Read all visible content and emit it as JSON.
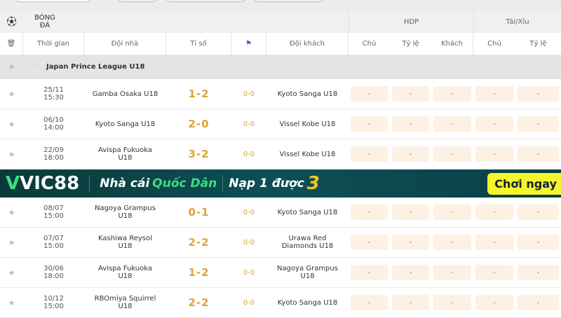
{
  "section": {
    "sport": "BÓNG ĐÁ",
    "icon": "soccer-ball-icon"
  },
  "headers": {
    "time": "Thời gian",
    "home": "Đội nhà",
    "score": "Tỉ số",
    "away": "Đội khách",
    "hdp": "HDP",
    "taixiu": "Tài/Xỉu",
    "chu": "Chủ",
    "tyle": "Tỷ lệ",
    "khach": "Khách"
  },
  "league": "Japan Prince League U18",
  "matches": [
    {
      "date": "25/11",
      "time": "15:30",
      "home": "Gamba Osaka U18",
      "score": "1-2",
      "ht": "0-0",
      "away": "Kyoto Sanga U18"
    },
    {
      "date": "06/10",
      "time": "14:00",
      "home": "Kyoto Sanga U18",
      "score": "2-0",
      "ht": "0-0",
      "away": "Vissel Kobe U18"
    },
    {
      "date": "22/09",
      "time": "18:00",
      "home": "Avispa Fukuoka U18",
      "score": "3-2",
      "ht": "0-0",
      "away": "Vissel Kobe U18"
    },
    {
      "date": "08/07",
      "time": "15:00",
      "home": "Nagoya Grampus U18",
      "score": "0-1",
      "ht": "0-0",
      "away": "Kyoto Sanga U18"
    },
    {
      "date": "07/07",
      "time": "15:00",
      "home": "Kashiwa Reysol U18",
      "score": "2-2",
      "ht": "0-0",
      "away": "Urawa Red Diamonds U18"
    },
    {
      "date": "30/06",
      "time": "18:00",
      "home": "Avispa Fukuoka U18",
      "score": "1-2",
      "ht": "0-0",
      "away": "Nagoya Grampus U18"
    },
    {
      "date": "10/12",
      "time": "15:00",
      "home": "RBOmiya Squirrel U18",
      "score": "2-2",
      "ht": "0-0",
      "away": "Kyoto Sanga U18"
    }
  ],
  "odds_placeholder": "-",
  "banner": {
    "brand": "VIC88",
    "slogan1": "Nhà cái",
    "slogan2": "Quốc Dân",
    "promo": "Nạp 1 được",
    "promo_num": "3",
    "cta": "Chơi ngay"
  },
  "colors": {
    "score": "#d9a634",
    "odds_bg": "#fdf1e4",
    "brand_green": "#3ddc84"
  }
}
